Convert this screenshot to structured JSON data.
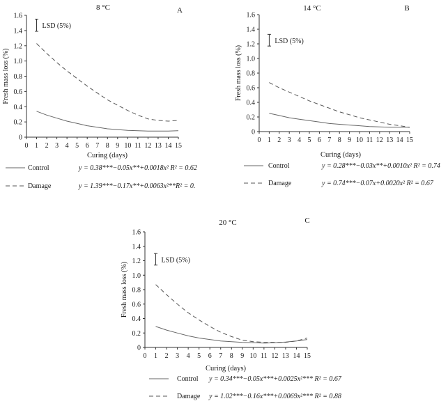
{
  "chart_data": [
    {
      "type": "line",
      "title": "8 °C",
      "panel_label": "A",
      "xlabel": "Curing (days)",
      "ylabel": "Fresh mass loss (%)",
      "xlim": [
        0,
        15
      ],
      "ylim": [
        0,
        1.6
      ],
      "x_ticks": [
        0,
        1,
        2,
        3,
        4,
        5,
        6,
        7,
        8,
        9,
        10,
        11,
        12,
        13,
        14,
        15
      ],
      "y_ticks": [
        "0",
        "0.2",
        "0.4",
        "0.6",
        "0.8",
        "1.0",
        "1.2",
        "1.4",
        "1.6"
      ],
      "lsd": {
        "label": "LSD (5%)",
        "x": 1,
        "y_center": 1.47,
        "half_length": 0.08
      },
      "series": [
        {
          "name": "Control",
          "style": "solid",
          "color": "#666666",
          "x": [
            1,
            2,
            3,
            4,
            5,
            6,
            7,
            8,
            9,
            10,
            11,
            12,
            13,
            14,
            15
          ],
          "values": [
            0.34,
            0.29,
            0.25,
            0.21,
            0.18,
            0.15,
            0.13,
            0.11,
            0.1,
            0.09,
            0.085,
            0.08,
            0.08,
            0.08,
            0.085
          ],
          "equation": "y = 0.38***−0.05x**+0.0018x² R² = 0.62"
        },
        {
          "name": "Damage",
          "style": "dashed",
          "color": "#555555",
          "x": [
            1,
            2,
            3,
            4,
            5,
            6,
            7,
            8,
            9,
            10,
            11,
            12,
            13,
            14,
            15
          ],
          "values": [
            1.23,
            1.1,
            0.98,
            0.87,
            0.77,
            0.67,
            0.58,
            0.49,
            0.42,
            0.35,
            0.29,
            0.24,
            0.22,
            0.21,
            0.22
          ],
          "equation": "y = 1.39***−0.17x**+0.0063x²**R² = 0."
        }
      ]
    },
    {
      "type": "line",
      "title": "14 °C",
      "panel_label": "B",
      "xlabel": "Curing (days)",
      "ylabel": "Fresh mass loss (%)",
      "xlim": [
        0,
        15
      ],
      "ylim": [
        0,
        1.6
      ],
      "x_ticks": [
        0,
        1,
        2,
        3,
        4,
        5,
        6,
        7,
        8,
        9,
        10,
        11,
        12,
        13,
        14,
        15
      ],
      "y_ticks": [
        "0",
        "0.2",
        "0.4",
        "0.6",
        "0.8",
        "1.0",
        "1.2",
        "1.4",
        "1.6"
      ],
      "lsd": {
        "label": "LSD (5%)",
        "x": 1,
        "y_center": 1.25,
        "half_length": 0.08
      },
      "series": [
        {
          "name": "Control",
          "style": "solid",
          "color": "#666666",
          "x": [
            1,
            2,
            3,
            4,
            5,
            6,
            7,
            8,
            9,
            10,
            11,
            12,
            13,
            14,
            15
          ],
          "values": [
            0.25,
            0.22,
            0.19,
            0.17,
            0.15,
            0.13,
            0.11,
            0.1,
            0.09,
            0.08,
            0.07,
            0.065,
            0.06,
            0.06,
            0.06
          ],
          "equation": "y = 0.28***−0.03x**+0.0010x² R² = 0.74"
        },
        {
          "name": "Damage",
          "style": "dashed",
          "color": "#555555",
          "x": [
            1,
            2,
            3,
            4,
            5,
            6,
            7,
            8,
            9,
            10,
            11,
            12,
            13,
            14,
            15
          ],
          "values": [
            0.67,
            0.6,
            0.54,
            0.48,
            0.42,
            0.37,
            0.32,
            0.27,
            0.23,
            0.19,
            0.16,
            0.13,
            0.1,
            0.08,
            0.06
          ],
          "equation": "y = 0.74***−0.07x+0.0020x² R² = 0.67"
        }
      ]
    },
    {
      "type": "line",
      "title": "20 °C",
      "panel_label": "C",
      "xlabel": "Curing (days)",
      "ylabel": "Fresh mass loss (%)",
      "xlim": [
        0,
        15
      ],
      "ylim": [
        0,
        1.6
      ],
      "x_ticks": [
        0,
        1,
        2,
        3,
        4,
        5,
        6,
        7,
        8,
        9,
        10,
        11,
        12,
        13,
        14,
        15
      ],
      "y_ticks": [
        "0",
        "0.2",
        "0.4",
        "0.6",
        "0.8",
        "1.0",
        "1.2",
        "1.4",
        "1.6"
      ],
      "lsd": {
        "label": "LSD (5%)",
        "x": 1,
        "y_center": 1.22,
        "half_length": 0.08
      },
      "series": [
        {
          "name": "Control",
          "style": "solid",
          "color": "#666666",
          "x": [
            1,
            2,
            3,
            4,
            5,
            6,
            7,
            8,
            9,
            10,
            11,
            12,
            13,
            14,
            15
          ],
          "values": [
            0.29,
            0.24,
            0.2,
            0.16,
            0.13,
            0.11,
            0.09,
            0.08,
            0.07,
            0.065,
            0.06,
            0.065,
            0.075,
            0.09,
            0.11
          ],
          "equation": "y = 0.34***−0.05x***+0.0025x²*** R² = 0.67"
        },
        {
          "name": "Damage",
          "style": "dashed",
          "color": "#555555",
          "x": [
            1,
            2,
            3,
            4,
            5,
            6,
            7,
            8,
            9,
            10,
            11,
            12,
            13,
            14,
            15
          ],
          "values": [
            0.87,
            0.73,
            0.6,
            0.48,
            0.38,
            0.29,
            0.21,
            0.15,
            0.1,
            0.08,
            0.07,
            0.07,
            0.07,
            0.09,
            0.13
          ],
          "equation": "y = 1.02***−0.16x***+0.0069x²*** R² = 0.88"
        }
      ]
    }
  ]
}
